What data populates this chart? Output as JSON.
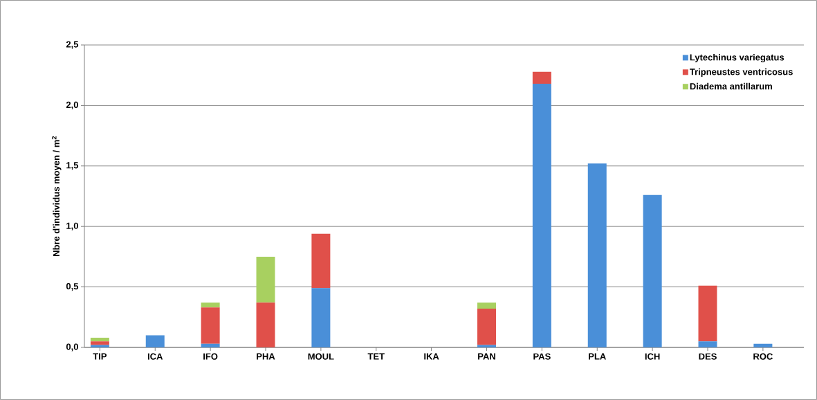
{
  "chart_data": {
    "type": "bar",
    "stacked": true,
    "ylabel": "Nbre d'individus moyen / m$^{2}$",
    "categories": [
      "TIP",
      "ICA",
      "IFO",
      "PHA",
      "MOUL",
      "TET",
      "IKA",
      "PAN",
      "PAS",
      "PLA",
      "ICH",
      "DES",
      "ROC"
    ],
    "series": [
      {
        "name": "Lytechinus variegatus",
        "color": "#4a8fd8",
        "values": [
          0.02,
          0.1,
          0.03,
          0,
          0.49,
          0,
          0,
          0.02,
          2.18,
          1.52,
          1.26,
          0.05,
          0.03
        ]
      },
      {
        "name": "Tripneustes ventricosus",
        "color": "#e0504a",
        "values": [
          0.03,
          0,
          0.3,
          0.37,
          0.45,
          0,
          0,
          0.3,
          0.1,
          0,
          0,
          0.46,
          0
        ]
      },
      {
        "name": "Diadema antillarum",
        "color": "#a8d060",
        "values": [
          0.03,
          0,
          0.04,
          0.38,
          0,
          0,
          0,
          0.05,
          0,
          0,
          0,
          0,
          0
        ]
      }
    ],
    "ylim": [
      0,
      2.5
    ],
    "yticks": [
      {
        "value": 0,
        "label": "0,0"
      },
      {
        "value": 0.5,
        "label": "0,5"
      },
      {
        "value": 1,
        "label": "1,0"
      },
      {
        "value": 1.5,
        "label": "1,5"
      },
      {
        "value": 2,
        "label": "2,0"
      },
      {
        "value": 2.5,
        "label": "2,5"
      }
    ],
    "grid": "y",
    "legend": "top right"
  }
}
